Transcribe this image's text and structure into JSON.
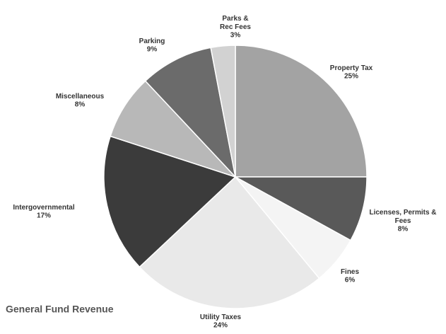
{
  "chart_data": {
    "type": "pie",
    "title": "General Fund Revenue",
    "categories": [
      "Property Tax",
      "Licenses, Permits & Fees",
      "Fines",
      "Utility Taxes",
      "Intergovernmental",
      "Miscellaneous",
      "Parking",
      "Parks & Rec Fees"
    ],
    "values": [
      25,
      8,
      6,
      24,
      17,
      8,
      9,
      3
    ],
    "value_labels": [
      "25%",
      "8%",
      "6%",
      "24%",
      "17%",
      "8%",
      "9%",
      "3%"
    ],
    "colors": [
      "#a3a3a3",
      "#595959",
      "#f4f4f4",
      "#e9e9e9",
      "#3b3b3b",
      "#b8b8b8",
      "#6b6b6b",
      "#d2d2d2"
    ]
  }
}
